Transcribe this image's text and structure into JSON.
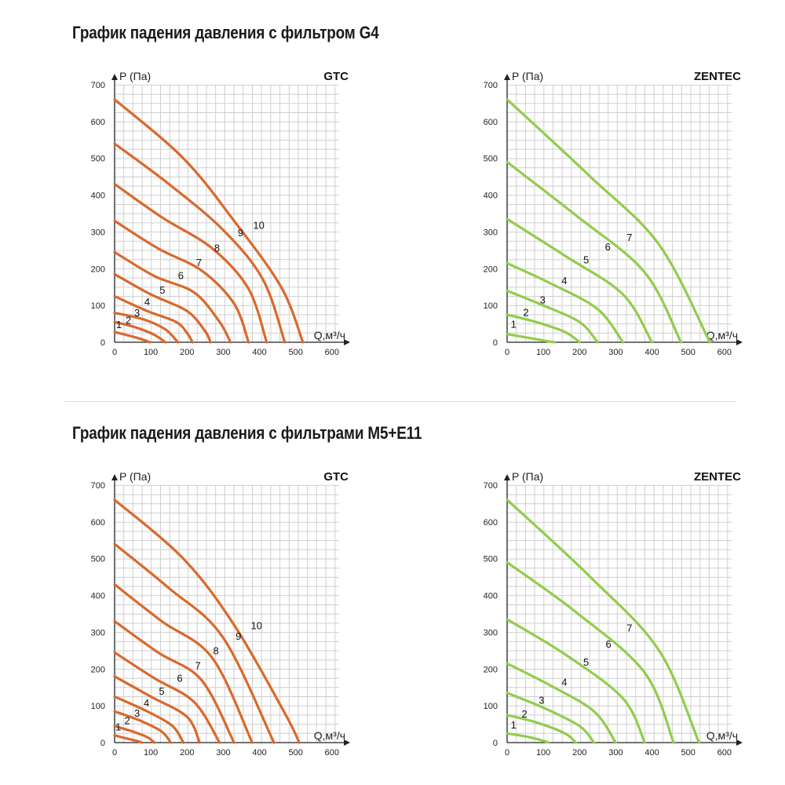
{
  "sections": [
    {
      "title": "График падения давления с фильтром G4"
    },
    {
      "title": "График падения давления с фильтрами M5+E11"
    }
  ],
  "chart_data": [
    {
      "type": "line",
      "brand": "GTC",
      "ylabel": "P (Па)",
      "xlabel": "Q,м³/ч",
      "xlim": [
        0,
        620
      ],
      "ylim": [
        0,
        700
      ],
      "x_ticks": [
        0,
        100,
        200,
        300,
        400,
        500,
        600
      ],
      "y_ticks": [
        0,
        100,
        200,
        300,
        400,
        500,
        600,
        700
      ],
      "grid": true,
      "color": "#d9692c",
      "series": [
        {
          "name": "1",
          "points": [
            [
              0,
              28
            ],
            [
              40,
              18
            ],
            [
              75,
              8
            ],
            [
              98,
              0
            ]
          ],
          "label_at": [
            12,
            38
          ]
        },
        {
          "name": "2",
          "points": [
            [
              0,
              55
            ],
            [
              60,
              40
            ],
            [
              110,
              20
            ],
            [
              140,
              0
            ]
          ],
          "label_at": [
            38,
            50
          ]
        },
        {
          "name": "3",
          "points": [
            [
              0,
              80
            ],
            [
              80,
              62
            ],
            [
              140,
              35
            ],
            [
              175,
              0
            ]
          ],
          "label_at": [
            62,
            70
          ]
        },
        {
          "name": "4",
          "points": [
            [
              0,
              125
            ],
            [
              90,
              85
            ],
            [
              170,
              55
            ],
            [
              200,
              25
            ],
            [
              215,
              0
            ]
          ],
          "label_at": [
            90,
            100
          ]
        },
        {
          "name": "5",
          "points": [
            [
              0,
              185
            ],
            [
              100,
              130
            ],
            [
              200,
              85
            ],
            [
              250,
              30
            ],
            [
              265,
              0
            ]
          ],
          "label_at": [
            132,
            132
          ]
        },
        {
          "name": "6",
          "points": [
            [
              0,
              245
            ],
            [
              110,
              180
            ],
            [
              220,
              135
            ],
            [
              290,
              55
            ],
            [
              320,
              0
            ]
          ],
          "label_at": [
            183,
            172
          ]
        },
        {
          "name": "7",
          "points": [
            [
              0,
              330
            ],
            [
              120,
              255
            ],
            [
              240,
              195
            ],
            [
              330,
              105
            ],
            [
              370,
              0
            ]
          ],
          "label_at": [
            233,
            207
          ]
        },
        {
          "name": "8",
          "points": [
            [
              0,
              430
            ],
            [
              130,
              340
            ],
            [
              270,
              255
            ],
            [
              370,
              145
            ],
            [
              420,
              0
            ]
          ],
          "label_at": [
            283,
            247
          ]
        },
        {
          "name": "9",
          "points": [
            [
              0,
              540
            ],
            [
              150,
              430
            ],
            [
              300,
              305
            ],
            [
              410,
              170
            ],
            [
              470,
              0
            ]
          ],
          "label_at": [
            348,
            288
          ]
        },
        {
          "name": "10",
          "points": [
            [
              0,
              660
            ],
            [
              190,
              500
            ],
            [
              330,
              330
            ],
            [
              460,
              150
            ],
            [
              520,
              0
            ]
          ],
          "label_at": [
            398,
            308
          ]
        }
      ]
    },
    {
      "type": "line",
      "brand": "ZENTEC",
      "ylabel": "P (Па)",
      "xlabel": "Q,м³/ч",
      "xlim": [
        0,
        620
      ],
      "ylim": [
        0,
        700
      ],
      "x_ticks": [
        0,
        100,
        200,
        300,
        400,
        500,
        600
      ],
      "y_ticks": [
        0,
        100,
        200,
        300,
        400,
        500,
        600,
        700
      ],
      "grid": true,
      "color": "#93cc4c",
      "series": [
        {
          "name": "1",
          "points": [
            [
              0,
              22
            ],
            [
              60,
              12
            ],
            [
              110,
              3
            ],
            [
              130,
              0
            ]
          ],
          "label_at": [
            18,
            40
          ]
        },
        {
          "name": "2",
          "points": [
            [
              0,
              75
            ],
            [
              80,
              55
            ],
            [
              160,
              28
            ],
            [
              200,
              0
            ]
          ],
          "label_at": [
            52,
            72
          ]
        },
        {
          "name": "3",
          "points": [
            [
              0,
              140
            ],
            [
              100,
              100
            ],
            [
              200,
              55
            ],
            [
              250,
              0
            ]
          ],
          "label_at": [
            98,
            106
          ]
        },
        {
          "name": "4",
          "points": [
            [
              0,
              215
            ],
            [
              120,
              160
            ],
            [
              250,
              90
            ],
            [
              320,
              0
            ]
          ],
          "label_at": [
            158,
            158
          ]
        },
        {
          "name": "5",
          "points": [
            [
              0,
              335
            ],
            [
              160,
              235
            ],
            [
              320,
              130
            ],
            [
              400,
              0
            ]
          ],
          "label_at": [
            218,
            215
          ]
        },
        {
          "name": "6",
          "points": [
            [
              0,
              490
            ],
            [
              190,
              345
            ],
            [
              380,
              190
            ],
            [
              480,
              0
            ]
          ],
          "label_at": [
            278,
            250
          ]
        },
        {
          "name": "7",
          "points": [
            [
              0,
              660
            ],
            [
              230,
              450
            ],
            [
              420,
              265
            ],
            [
              560,
              0
            ]
          ],
          "label_at": [
            338,
            275
          ]
        }
      ]
    },
    {
      "type": "line",
      "brand": "GTC",
      "ylabel": "P (Па)",
      "xlabel": "Q,м³/ч",
      "xlim": [
        0,
        620
      ],
      "ylim": [
        0,
        700
      ],
      "x_ticks": [
        0,
        100,
        200,
        300,
        400,
        500,
        600
      ],
      "y_ticks": [
        0,
        100,
        200,
        300,
        400,
        500,
        600,
        700
      ],
      "grid": true,
      "color": "#d9692c",
      "series": [
        {
          "name": "1",
          "points": [
            [
              0,
              20
            ],
            [
              30,
              12
            ],
            [
              60,
              5
            ],
            [
              75,
              0
            ]
          ],
          "label_at": [
            10,
            33
          ]
        },
        {
          "name": "2",
          "points": [
            [
              0,
              45
            ],
            [
              50,
              30
            ],
            [
              90,
              15
            ],
            [
              110,
              0
            ]
          ],
          "label_at": [
            35,
            50
          ]
        },
        {
          "name": "3",
          "points": [
            [
              0,
              85
            ],
            [
              70,
              60
            ],
            [
              130,
              30
            ],
            [
              155,
              0
            ]
          ],
          "label_at": [
            62,
            70
          ]
        },
        {
          "name": "4",
          "points": [
            [
              0,
              125
            ],
            [
              90,
              85
            ],
            [
              160,
              45
            ],
            [
              190,
              0
            ]
          ],
          "label_at": [
            88,
            98
          ]
        },
        {
          "name": "5",
          "points": [
            [
              0,
              180
            ],
            [
              100,
              125
            ],
            [
              200,
              70
            ],
            [
              235,
              0
            ]
          ],
          "label_at": [
            130,
            130
          ]
        },
        {
          "name": "6",
          "points": [
            [
              0,
              245
            ],
            [
              110,
              175
            ],
            [
              220,
              110
            ],
            [
              290,
              0
            ]
          ],
          "label_at": [
            180,
            165
          ]
        },
        {
          "name": "7",
          "points": [
            [
              0,
              330
            ],
            [
              120,
              245
            ],
            [
              240,
              170
            ],
            [
              330,
              0
            ]
          ],
          "label_at": [
            230,
            200
          ]
        },
        {
          "name": "8",
          "points": [
            [
              0,
              430
            ],
            [
              130,
              330
            ],
            [
              270,
              230
            ],
            [
              380,
              0
            ]
          ],
          "label_at": [
            280,
            240
          ]
        },
        {
          "name": "9",
          "points": [
            [
              0,
              540
            ],
            [
              150,
              420
            ],
            [
              300,
              285
            ],
            [
              440,
              0
            ]
          ],
          "label_at": [
            342,
            280
          ]
        },
        {
          "name": "10",
          "points": [
            [
              0,
              660
            ],
            [
              190,
              500
            ],
            [
              330,
              320
            ],
            [
              470,
              80
            ],
            [
              510,
              0
            ]
          ],
          "label_at": [
            392,
            308
          ]
        }
      ]
    },
    {
      "type": "line",
      "brand": "ZENTEC",
      "ylabel": "P (Па)",
      "xlabel": "Q,м³/ч",
      "xlim": [
        0,
        620
      ],
      "ylim": [
        0,
        700
      ],
      "x_ticks": [
        0,
        100,
        200,
        300,
        400,
        500,
        600
      ],
      "y_ticks": [
        0,
        100,
        200,
        300,
        400,
        500,
        600,
        700
      ],
      "grid": true,
      "color": "#93cc4c",
      "series": [
        {
          "name": "1",
          "points": [
            [
              0,
              25
            ],
            [
              60,
              15
            ],
            [
              100,
              5
            ],
            [
              115,
              0
            ]
          ],
          "label_at": [
            18,
            38
          ]
        },
        {
          "name": "2",
          "points": [
            [
              0,
              75
            ],
            [
              80,
              55
            ],
            [
              160,
              25
            ],
            [
              190,
              0
            ]
          ],
          "label_at": [
            48,
            68
          ]
        },
        {
          "name": "3",
          "points": [
            [
              0,
              135
            ],
            [
              100,
              95
            ],
            [
              200,
              45
            ],
            [
              240,
              0
            ]
          ],
          "label_at": [
            95,
            106
          ]
        },
        {
          "name": "4",
          "points": [
            [
              0,
              215
            ],
            [
              120,
              155
            ],
            [
              240,
              85
            ],
            [
              300,
              0
            ]
          ],
          "label_at": [
            158,
            155
          ]
        },
        {
          "name": "5",
          "points": [
            [
              0,
              335
            ],
            [
              160,
              240
            ],
            [
              320,
              120
            ],
            [
              380,
              0
            ]
          ],
          "label_at": [
            218,
            209
          ]
        },
        {
          "name": "6",
          "points": [
            [
              0,
              490
            ],
            [
              190,
              355
            ],
            [
              380,
              190
            ],
            [
              460,
              0
            ]
          ],
          "label_at": [
            280,
            258
          ]
        },
        {
          "name": "7",
          "points": [
            [
              0,
              660
            ],
            [
              230,
              450
            ],
            [
              420,
              250
            ],
            [
              530,
              0
            ]
          ],
          "label_at": [
            338,
            302
          ]
        }
      ]
    }
  ]
}
